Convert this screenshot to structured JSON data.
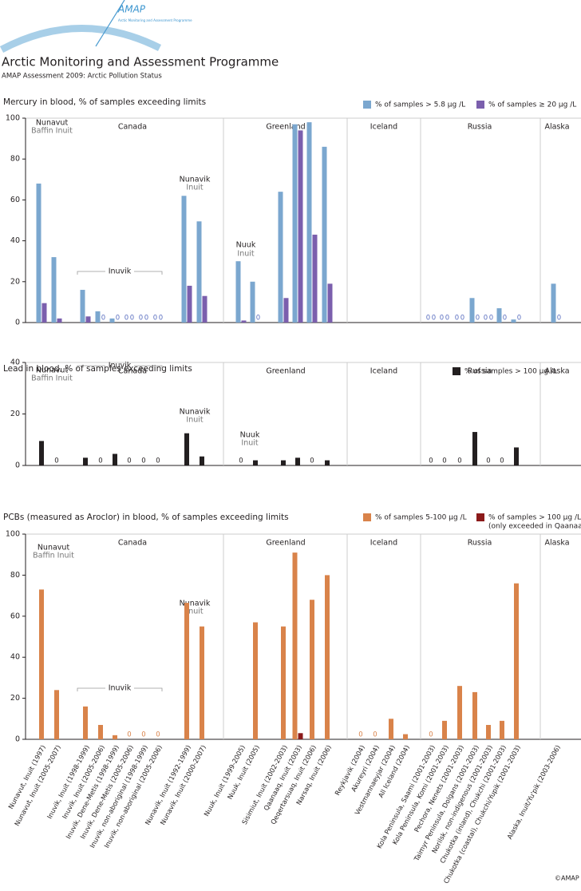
{
  "header": {
    "logo_name": "AMAP",
    "logo_tagline": "Arctic Monitoring and Assessment Programme",
    "title": "Arctic Monitoring and Assessment Programme",
    "subtitle": "AMAP Assessment 2009: Arctic Pollution Status"
  },
  "footer": "©AMAP",
  "chart_data": [
    {
      "type": "bar",
      "title": "Mercury in blood, % of samples exceeding limits",
      "groups": [
        "Canada",
        "Greenland",
        "Iceland",
        "Russia",
        "Alaska"
      ],
      "annotations": [
        "Nunavut",
        "Baffin Inuit",
        "Inuvik",
        "Nunavik",
        "Inuit",
        "Nuuk",
        "Inuit"
      ],
      "ylim": [
        0,
        100
      ],
      "yticks": [
        0,
        20,
        40,
        60,
        80,
        100
      ],
      "series": [
        {
          "name": "% of samples > 5.8 µg /L",
          "color": "#7ba7cf",
          "values": [
            68,
            32,
            16,
            5.5,
            2,
            0,
            0,
            0,
            62,
            49.5,
            30,
            20,
            64,
            97,
            98,
            86,
            null,
            null,
            null,
            null,
            0,
            0,
            0,
            12,
            0,
            7,
            1.5,
            19
          ]
        },
        {
          "name": "% of samples  ≥ 20 µg /L",
          "color": "#7b5fad",
          "values": [
            9.5,
            2,
            3,
            0,
            0,
            0,
            0,
            0,
            18,
            13,
            1,
            0,
            12,
            94,
            43,
            19,
            null,
            null,
            null,
            null,
            0,
            0,
            0,
            0,
            0,
            0,
            0,
            0
          ]
        }
      ]
    },
    {
      "type": "bar",
      "title": "Lead in blood, % of samples exceeding limits",
      "groups": [
        "Canada",
        "Greenland",
        "Iceland",
        "Russia",
        "Alaska"
      ],
      "annotations": [
        "Nunavut",
        "Baffin Inuit",
        "Inuvik",
        "Nunavik",
        "Inuit",
        "Nuuk",
        "Inuit"
      ],
      "ylim": [
        0,
        40
      ],
      "yticks": [
        0,
        20,
        40
      ],
      "series": [
        {
          "name": "% of samples  > 100 µg /L",
          "color": "#231f20",
          "values": [
            9.5,
            0,
            3,
            0,
            4.5,
            0,
            0,
            0,
            12.5,
            3.5,
            0,
            2,
            2,
            3,
            0,
            2,
            null,
            null,
            null,
            null,
            0,
            0,
            0,
            13,
            0,
            0,
            7,
            null
          ]
        }
      ]
    },
    {
      "type": "bar",
      "title": "PCBs (measured as Aroclor) in blood, % of samples exceeding limits",
      "groups": [
        "Canada",
        "Greenland",
        "Iceland",
        "Russia",
        "Alaska"
      ],
      "annotations": [
        "Nunavut",
        "Baffin Inuit",
        "Nunavik",
        "Inuit",
        "Inuvik"
      ],
      "legend_note": "(only exceeded in Qaanaaq)",
      "ylim": [
        0,
        100
      ],
      "yticks": [
        0,
        20,
        40,
        60,
        80,
        100
      ],
      "categories": [
        "Nunavut, Inuit (1997)",
        "Nunavut, Inuit (2005-2007)",
        "Inuvik, Inuit (1998-1999)",
        "Inuvik, Inuit (2005-2006)",
        "Inuvik, Dene-Metis (1998-1999)",
        "Inuvik, Dene-Metis (2005-2006)",
        "Inuvik, non-aboriginal (1998-1999)",
        "Inuvik, non-aboriginal (2005-2006)",
        "Nunavik, Inuit (1992-1999)",
        "Nunavik, Inuit (2000-2007)",
        "Nuuk, Inuit (1999-2005)",
        "Nuuk, Inuit (2005)",
        "Sisimiut, Inuit (2002-2003)",
        "Qaanaaq, Inuit (2003)",
        "Qeqertarsuaq, Inuit (2006)",
        "Narsaq, Inuit (2006)",
        "Reykjavik (2004)",
        "Akureyri (2004)",
        "Vestmannaeyjar (2004)",
        "All Iceland (2004)",
        "Kola Peninsula, Saami (2001-2003)",
        "Kola Peninsula, Komi (2001-2003)",
        "Pechora, Nenets (2001-2003)",
        "Taimyr Peninsula, Dolgans (2001-2003)",
        "Norilsk, non-indigenous (2001-2003)",
        "Chukotka (inland), Chukchi (2001-2003)",
        "Chukotka (coastal), Chukchi/Yupik (2001-2003)",
        "Alaska, Inuit/Yu'pik (2003-2006)"
      ],
      "series": [
        {
          "name": "% of samples 5-100 µg /L",
          "color": "#d9834a",
          "values": [
            73,
            24,
            16,
            7,
            2,
            0,
            0,
            0,
            66.5,
            55,
            null,
            57,
            55,
            91,
            68,
            80,
            0,
            0,
            10,
            2.5,
            0,
            9,
            26,
            23,
            7,
            9,
            76,
            null
          ]
        },
        {
          "name": "% of samples  > 100 µg /L",
          "color": "#8b1a1a",
          "values": [
            null,
            null,
            null,
            null,
            null,
            null,
            null,
            null,
            null,
            null,
            null,
            null,
            null,
            3,
            null,
            null,
            null,
            null,
            null,
            null,
            null,
            null,
            null,
            null,
            null,
            null,
            null,
            null
          ]
        }
      ]
    }
  ]
}
